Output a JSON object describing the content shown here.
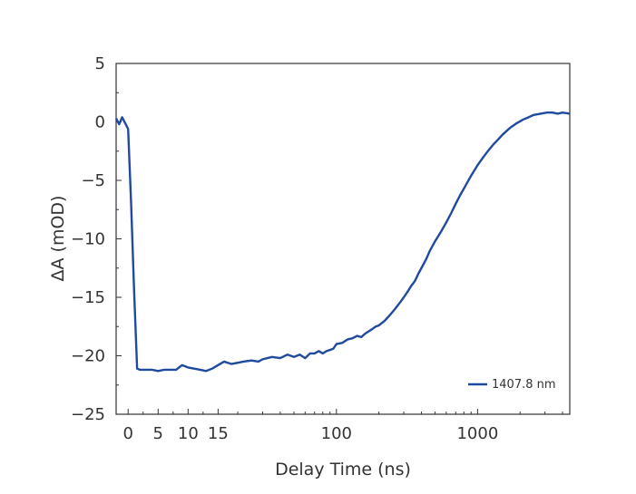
{
  "chart_data": {
    "type": "line",
    "title": "",
    "xlabel": "Delay Time (ns)",
    "ylabel": "ΔA (mOD)",
    "ylim": [
      -25,
      5
    ],
    "yticks": [
      5,
      0,
      -5,
      -10,
      -15,
      -20,
      -25
    ],
    "ytick_labels": [
      "5",
      "0",
      "−5",
      "−10",
      "−15",
      "−20",
      "−25"
    ],
    "x_scale": "linear-log",
    "x_linear_range": [
      -2,
      16
    ],
    "x_log_range": [
      16,
      4500
    ],
    "xticks": [
      0,
      5,
      10,
      15,
      100,
      1000
    ],
    "xtick_labels": [
      "0",
      "5",
      "10",
      "15",
      "100",
      "1000"
    ],
    "grid": false,
    "legend_position": "bottom-right",
    "line_color": "#1f4a9e",
    "series": [
      {
        "name": "1407.8 nm",
        "x": [
          -2,
          -1.5,
          -1,
          -0.5,
          0,
          0.5,
          1,
          1.5,
          2,
          3,
          4,
          5,
          6,
          7,
          8,
          9,
          10,
          11,
          12,
          13,
          14,
          15,
          16,
          17,
          18,
          20,
          22,
          25,
          28,
          30,
          35,
          40,
          45,
          50,
          55,
          60,
          65,
          70,
          75,
          80,
          85,
          90,
          95,
          100,
          110,
          120,
          130,
          140,
          150,
          160,
          170,
          180,
          190,
          200,
          220,
          240,
          260,
          280,
          300,
          320,
          340,
          360,
          380,
          400,
          430,
          460,
          500,
          550,
          600,
          650,
          700,
          750,
          800,
          900,
          1000,
          1100,
          1200,
          1300,
          1400,
          1500,
          1700,
          1900,
          2100,
          2300,
          2500,
          2800,
          3100,
          3400,
          3700,
          4000,
          4500
        ],
        "values": [
          0.3,
          -0.2,
          0.4,
          -0.1,
          -0.6,
          -7.0,
          -14.5,
          -21.1,
          -21.2,
          -21.2,
          -21.2,
          -21.3,
          -21.2,
          -21.2,
          -21.2,
          -20.8,
          -21.0,
          -21.1,
          -21.2,
          -21.3,
          -21.1,
          -20.8,
          -20.5,
          -20.6,
          -20.7,
          -20.6,
          -20.5,
          -20.4,
          -20.5,
          -20.3,
          -20.1,
          -20.2,
          -19.9,
          -20.1,
          -19.9,
          -20.2,
          -19.8,
          -19.8,
          -19.6,
          -19.8,
          -19.6,
          -19.5,
          -19.4,
          -19.0,
          -18.9,
          -18.6,
          -18.5,
          -18.3,
          -18.4,
          -18.1,
          -17.9,
          -17.7,
          -17.5,
          -17.4,
          -17.0,
          -16.5,
          -16.0,
          -15.5,
          -15.0,
          -14.5,
          -14.0,
          -13.6,
          -13.0,
          -12.5,
          -11.8,
          -11.0,
          -10.2,
          -9.4,
          -8.6,
          -7.8,
          -7.0,
          -6.3,
          -5.7,
          -4.6,
          -3.7,
          -3.0,
          -2.4,
          -1.9,
          -1.5,
          -1.1,
          -0.5,
          -0.1,
          0.2,
          0.4,
          0.6,
          0.7,
          0.8,
          0.8,
          0.7,
          0.8,
          0.7
        ]
      }
    ]
  }
}
